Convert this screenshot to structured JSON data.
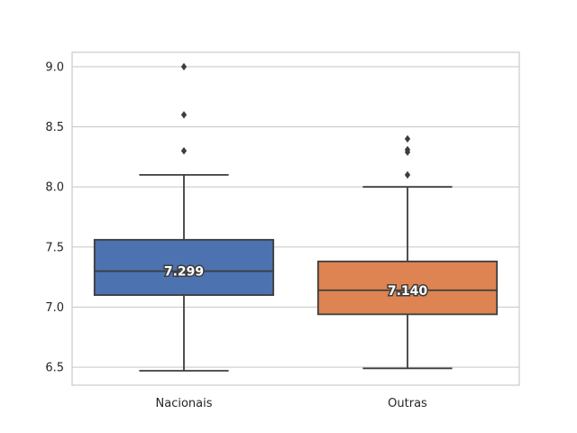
{
  "chart_data": {
    "type": "box",
    "title": "",
    "xlabel": "",
    "ylabel": "",
    "ylim": [
      6.35,
      9.12
    ],
    "yticks": [
      "6.5",
      "7.0",
      "7.5",
      "8.0",
      "8.5",
      "9.0"
    ],
    "grid": "horizontal",
    "colors": {
      "line": "#3d3d3d",
      "grid": "#cccccc",
      "frame": "#cccccc"
    },
    "groups": [
      {
        "category": "Nacionais",
        "color": "#4c72b0",
        "whisker_low": 6.47,
        "q1": 7.1,
        "median": 7.299,
        "q3": 7.56,
        "whisker_high": 8.1,
        "outliers": [
          8.3,
          8.6,
          9.0
        ],
        "median_label": "7.299"
      },
      {
        "category": "Outras",
        "color": "#dd8452",
        "whisker_low": 6.49,
        "q1": 6.94,
        "median": 7.14,
        "q3": 7.38,
        "whisker_high": 8.0,
        "outliers": [
          8.1,
          8.29,
          8.31,
          8.4
        ],
        "median_label": "7.140"
      }
    ]
  }
}
